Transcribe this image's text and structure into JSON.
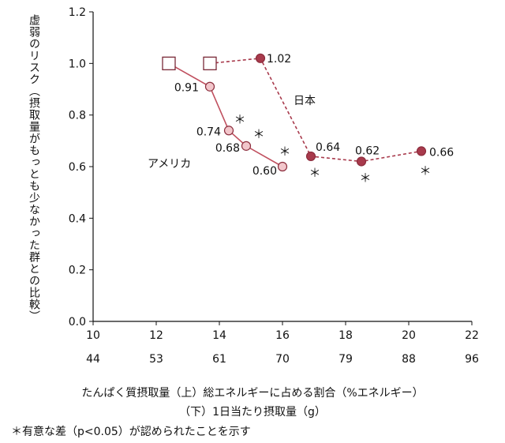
{
  "chart_data": {
    "type": "line",
    "ylabel": "虚弱のリスク（摂取量がもっとも少なかった群との比較）",
    "xlabel_top": "たんぱく質摂取量（上）総エネルギーに占める割合（%エネルギー）",
    "xlabel_bottom": "（下）1日当たり摂取量（g）",
    "footnote": "＊有意な差（p<0.05）が認められたことを示す",
    "xlim": [
      10,
      22
    ],
    "ylim": [
      0.0,
      1.2
    ],
    "x_ticks_top": [
      "10",
      "12",
      "14",
      "16",
      "18",
      "20",
      "22"
    ],
    "x_ticks_bottom": [
      "44",
      "53",
      "61",
      "70",
      "79",
      "88",
      "96"
    ],
    "y_ticks": [
      "0.0",
      "0.2",
      "0.4",
      "0.6",
      "0.8",
      "1.0",
      "1.2"
    ],
    "grid": false,
    "series": [
      {
        "name": "アメリカ",
        "color": "#c0505f",
        "marker_fill": "#f2c6cb",
        "line_style": "solid",
        "points": [
          {
            "x": 12.4,
            "y": 1.0,
            "label": "",
            "sig": false,
            "reference": true
          },
          {
            "x": 13.7,
            "y": 0.91,
            "label": "0.91",
            "sig": false,
            "reference": false
          },
          {
            "x": 14.3,
            "y": 0.74,
            "label": "0.74",
            "sig": true,
            "reference": false
          },
          {
            "x": 14.85,
            "y": 0.68,
            "label": "0.68",
            "sig": true,
            "reference": false
          },
          {
            "x": 16.0,
            "y": 0.6,
            "label": "0.60",
            "sig": true,
            "reference": false
          }
        ]
      },
      {
        "name": "日本",
        "color": "#a83a4c",
        "marker_fill": "#a83a4c",
        "line_style": "dashed",
        "points": [
          {
            "x": 13.7,
            "y": 1.0,
            "label": "",
            "sig": false,
            "reference": true
          },
          {
            "x": 15.3,
            "y": 1.02,
            "label": "1.02",
            "sig": false,
            "reference": false
          },
          {
            "x": 16.9,
            "y": 0.64,
            "label": "0.64",
            "sig": true,
            "reference": false
          },
          {
            "x": 18.5,
            "y": 0.62,
            "label": "0.62",
            "sig": true,
            "reference": false
          },
          {
            "x": 20.4,
            "y": 0.66,
            "label": "0.66",
            "sig": true,
            "reference": false
          }
        ]
      }
    ]
  }
}
